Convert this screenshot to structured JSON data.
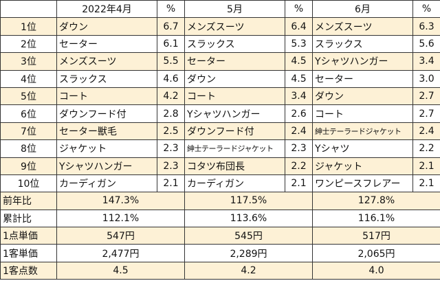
{
  "header": {
    "blank": "",
    "month1": "2022年4月",
    "pct1": "%",
    "month2": "5月",
    "pct2": "%",
    "month3": "6月",
    "pct3": "%"
  },
  "ranking": [
    {
      "rank": "1位",
      "m1_item": "ダウン",
      "m1_pct": "6.7",
      "m2_item": "メンズスーツ",
      "m2_pct": "6.4",
      "m3_item": "メンズスーツ",
      "m3_pct": "6.3"
    },
    {
      "rank": "2位",
      "m1_item": "セーター",
      "m1_pct": "6.1",
      "m2_item": "スラックス",
      "m2_pct": "5.3",
      "m3_item": "スラックス",
      "m3_pct": "5.6"
    },
    {
      "rank": "3位",
      "m1_item": "メンズスーツ",
      "m1_pct": "5.5",
      "m2_item": "セーター",
      "m2_pct": "4.5",
      "m3_item": "Yシャツハンガー",
      "m3_pct": "3.4"
    },
    {
      "rank": "4位",
      "m1_item": "スラックス",
      "m1_pct": "4.6",
      "m2_item": "ダウン",
      "m2_pct": "4.5",
      "m3_item": "セーター",
      "m3_pct": "3.0"
    },
    {
      "rank": "5位",
      "m1_item": "コート",
      "m1_pct": "4.2",
      "m2_item": "コート",
      "m2_pct": "3.4",
      "m3_item": "ダウン",
      "m3_pct": "2.7"
    },
    {
      "rank": "6位",
      "m1_item": "ダウンフード付",
      "m1_pct": "2.8",
      "m2_item": "Yシャツハンガー",
      "m2_pct": "2.6",
      "m3_item": "コート",
      "m3_pct": "2.7"
    },
    {
      "rank": "7位",
      "m1_item": "セーター獣毛",
      "m1_pct": "2.5",
      "m2_item": "ダウンフード付",
      "m2_pct": "2.4",
      "m3_item": "紳士テーラードジャケット",
      "m3_pct": "2.4"
    },
    {
      "rank": "8位",
      "m1_item": "ジャケット",
      "m1_pct": "2.3",
      "m2_item": "紳士テーラードジャケット",
      "m2_pct": "2.3",
      "m3_item": "Yシャツ",
      "m3_pct": "2.2"
    },
    {
      "rank": "9位",
      "m1_item": "Yシャツハンガー",
      "m1_pct": "2.3",
      "m2_item": "コタツ布団長",
      "m2_pct": "2.2",
      "m3_item": "ジャケット",
      "m3_pct": "2.1"
    },
    {
      "rank": "10位",
      "m1_item": "カーディガン",
      "m1_pct": "2.1",
      "m2_item": "カーディガン",
      "m2_pct": "2.1",
      "m3_item": "ワンピースフレアー",
      "m3_pct": "2.1"
    }
  ],
  "summary": [
    {
      "label": "前年比",
      "m1": "147.3%",
      "m2": "117.5%",
      "m3": "127.8%"
    },
    {
      "label": "累計比",
      "m1": "112.1%",
      "m2": "113.6%",
      "m3": "116.1%"
    },
    {
      "label": "1点単価",
      "m1": "547円",
      "m2": "545円",
      "m3": "517円"
    },
    {
      "label": "1客単価",
      "m1": "2,477円",
      "m2": "2,289円",
      "m3": "2,065円"
    },
    {
      "label": "1客点数",
      "m1": "4.5",
      "m2": "4.2",
      "m3": "4.0"
    }
  ],
  "colors": {
    "shade": "#fdf1d6",
    "border": "#333333"
  }
}
